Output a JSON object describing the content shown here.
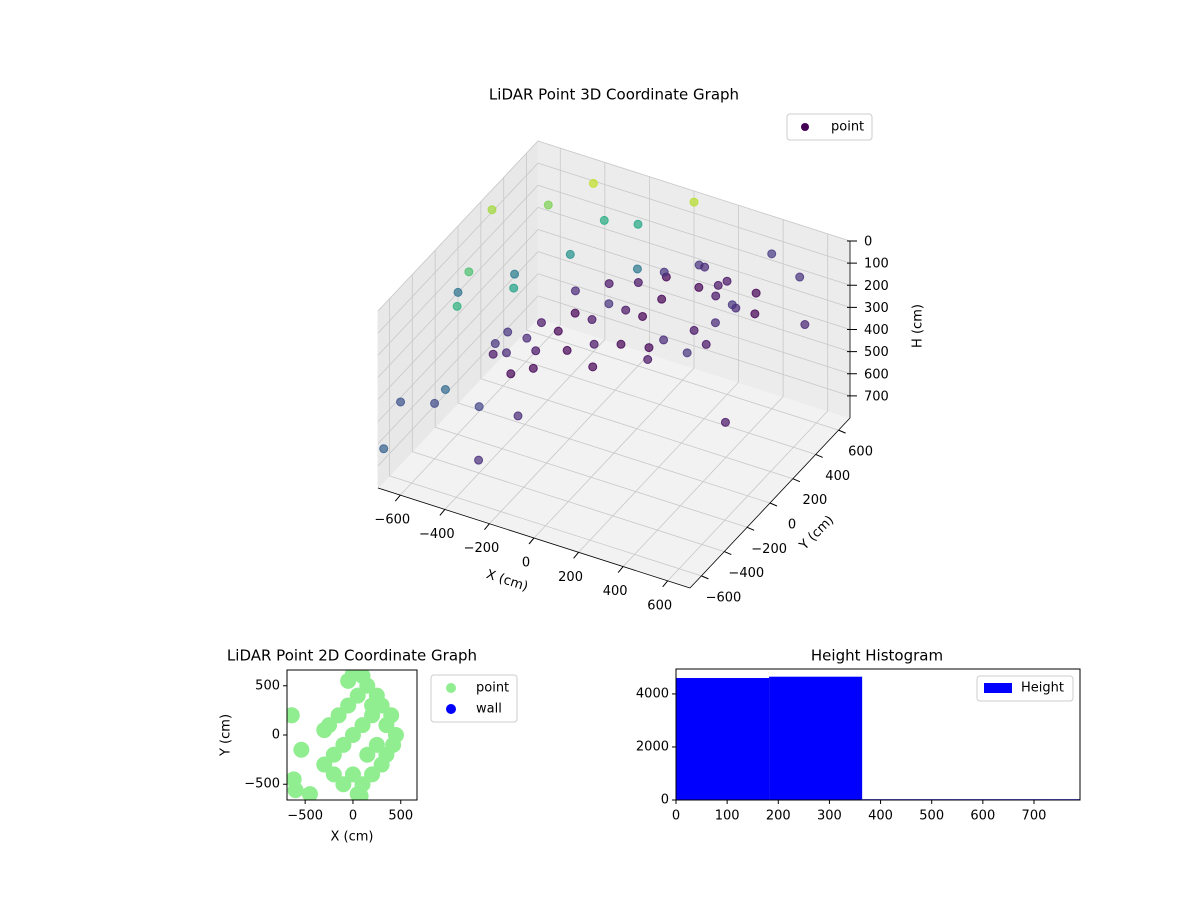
{
  "chart_data": [
    {
      "type": "scatter3d",
      "title": "LiDAR Point 3D Coordinate Graph",
      "x_label": "X (cm)",
      "y_label": "Y (cm)",
      "z_label": "H (cm)",
      "xlim": [
        -700,
        700
      ],
      "ylim": [
        -700,
        700
      ],
      "zlim": [
        800,
        0
      ],
      "xticks": [
        {
          "value": -600,
          "label": "−600"
        },
        {
          "value": -400,
          "label": "−400"
        },
        {
          "value": -200,
          "label": "−200"
        },
        0,
        200,
        400,
        600
      ],
      "yticks": [
        {
          "value": -600,
          "label": "−600"
        },
        {
          "value": -400,
          "label": "−400"
        },
        {
          "value": -200,
          "label": "−200"
        },
        0,
        200,
        400,
        600
      ],
      "zticks": [
        0,
        100,
        200,
        300,
        400,
        500,
        600,
        700
      ],
      "grid": true,
      "legend": "upper right",
      "series": [
        {
          "name": "point",
          "x": [
            150,
            200,
            250,
            100,
            180,
            60,
            0,
            -50,
            120,
            -100,
            -150,
            -200,
            -250,
            -300,
            -350,
            -400,
            -300,
            -200,
            40,
            220,
            280,
            300,
            260,
            80,
            -20,
            -120,
            -380,
            -420,
            -450,
            -340,
            -280,
            160,
            140,
            10,
            -60,
            330,
            350,
            -150,
            -250,
            200,
            100,
            -80,
            -650,
            -500,
            -400,
            -600,
            -550,
            -450,
            -350,
            -300,
            -200,
            -100,
            -500,
            -650,
            -400,
            -600,
            -300,
            -200,
            -700,
            400,
            500,
            600,
            500,
            0,
            -700,
            -600
          ],
          "y": [
            450,
            500,
            400,
            550,
            350,
            300,
            250,
            200,
            200,
            150,
            100,
            50,
            0,
            -50,
            -80,
            -150,
            -100,
            -20,
            380,
            560,
            520,
            450,
            300,
            150,
            100,
            60,
            -200,
            -220,
            -180,
            -240,
            -160,
            600,
            520,
            420,
            330,
            600,
            550,
            250,
            150,
            250,
            100,
            -30,
            200,
            400,
            600,
            -100,
            -300,
            0,
            300,
            500,
            600,
            400,
            -500,
            -600,
            -400,
            -400,
            -600,
            -450,
            -650,
            600,
            650,
            500,
            0,
            700,
            0,
            300
          ],
          "z": [
            250,
            300,
            350,
            220,
            380,
            250,
            320,
            280,
            360,
            240,
            300,
            260,
            330,
            280,
            350,
            300,
            380,
            390,
            200,
            260,
            340,
            280,
            390,
            380,
            370,
            380,
            360,
            320,
            400,
            420,
            420,
            320,
            200,
            210,
            230,
            300,
            360,
            220,
            230,
            420,
            400,
            420,
            20,
            60,
            40,
            120,
            150,
            200,
            180,
            120,
            160,
            220,
            400,
            450,
            500,
            550,
            600,
            450,
            650,
            100,
            200,
            300,
            500,
            50,
            300,
            350
          ],
          "colors": [
            "#440154",
            "#471365",
            "#482878",
            "#46337e",
            "#471365",
            "#440154",
            "#440154",
            "#471365",
            "#482878",
            "#46337e",
            "#471365",
            "#440154",
            "#440154",
            "#471365",
            "#482878",
            "#46337e",
            "#471365",
            "#440154",
            "#440154",
            "#471365",
            "#482878",
            "#46337e",
            "#471365",
            "#440154",
            "#440154",
            "#471365",
            "#482878",
            "#46337e",
            "#471365",
            "#440154",
            "#440154",
            "#471365",
            "#482878",
            "#46337e",
            "#471365",
            "#440154",
            "#440154",
            "#471365",
            "#482878",
            "#46337e",
            "#471365",
            "#440154",
            "#a0da39",
            "#7ad151",
            "#c2df23",
            "#4ac16d",
            "#2db27d",
            "#1fa187",
            "#21918c",
            "#27ad81",
            "#22a884",
            "#2a788e",
            "#31688e",
            "#3b528b",
            "#414487",
            "#3e4989",
            "#472d7b",
            "#482878",
            "#355f8d",
            "#443983",
            "#46327e",
            "#482475",
            "#471365",
            "#b5de2b",
            "#2c728e",
            "#287c8e"
          ]
        }
      ]
    },
    {
      "type": "scatter",
      "title": "LiDAR Point 2D Coordinate Graph",
      "x_label": "X (cm)",
      "y_label": "Y (cm)",
      "xlim": [
        -690,
        670
      ],
      "ylim": [
        -660,
        660
      ],
      "xticks": [
        {
          "value": -500,
          "label": "−500"
        },
        0,
        500
      ],
      "yticks": [
        {
          "value": -500,
          "label": "−500"
        },
        0,
        500
      ],
      "legend": "outside right",
      "series": [
        {
          "name": "point",
          "color": "#90ee90",
          "x": [
            0,
            100,
            200,
            300,
            400,
            450,
            -100,
            -200,
            -300,
            50,
            150,
            250,
            350,
            -50,
            -150,
            -250,
            0,
            100,
            200,
            300,
            -100,
            -200,
            100,
            200,
            -50,
            50,
            150,
            250,
            350,
            420,
            -640,
            -620,
            -540,
            -600,
            -450,
            -300,
            0,
            80
          ],
          "y": [
            0,
            100,
            200,
            300,
            200,
            0,
            -100,
            -200,
            -300,
            400,
            500,
            400,
            -200,
            300,
            200,
            100,
            -400,
            -500,
            -400,
            -300,
            -500,
            -400,
            600,
            300,
            550,
            -600,
            -200,
            -100,
            100,
            -100,
            200,
            -450,
            -150,
            -560,
            -600,
            50,
            620,
            -620
          ]
        },
        {
          "name": "wall",
          "color": "#0000ff",
          "x": [],
          "y": []
        }
      ]
    },
    {
      "type": "histogram",
      "title": "Height Histogram",
      "bins": [
        0,
        182,
        364,
        546,
        728,
        790
      ],
      "series": [
        {
          "name": "Height",
          "color": "#0000ff",
          "values": [
            4600,
            4650,
            30,
            30,
            30
          ]
        }
      ],
      "xlim": [
        0,
        790
      ],
      "ylim": [
        0,
        4940
      ],
      "xticks": [
        0,
        100,
        200,
        300,
        400,
        500,
        600,
        700
      ],
      "yticks": [
        0,
        2000,
        4000
      ],
      "legend": "upper right"
    }
  ]
}
